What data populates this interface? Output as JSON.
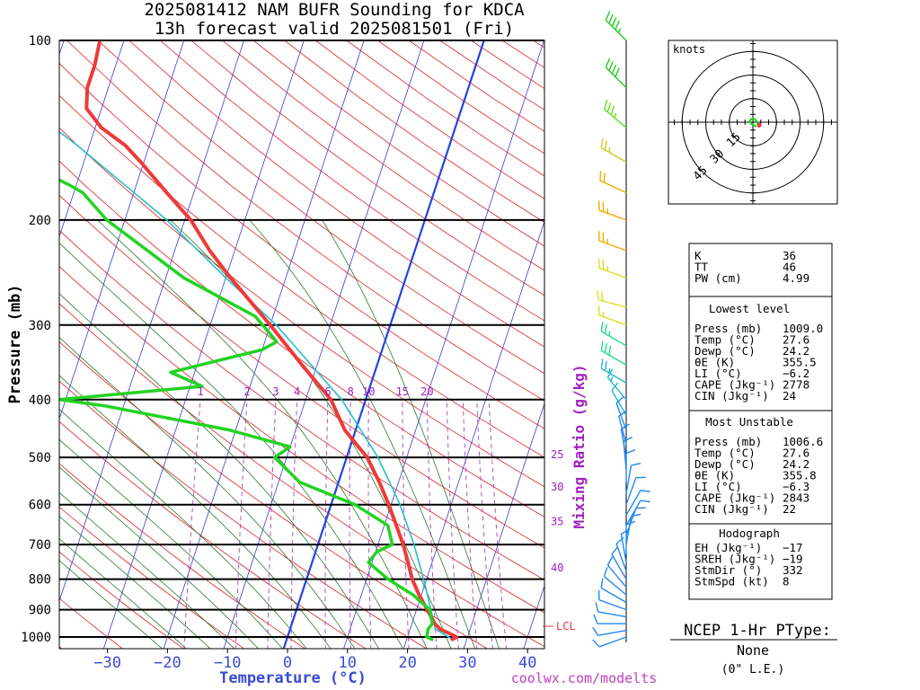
{
  "title": {
    "line1": "2025081412 NAM BUFR Sounding for KDCA",
    "line2": "13h forecast valid 2025081501 (Fri)"
  },
  "colors": {
    "temperature": "#ee3a3a",
    "dewpoint": "#22d322",
    "parcel": "#22c0d0",
    "isotherm": "#3a3ad8",
    "dry_adiabat": "#e02020",
    "moist_adiabat": "#2a7a2a",
    "mixing_ratio": "#b040c0",
    "zero_isotherm": "#2244dd",
    "mixlab": "#a020c0",
    "lcl": "#ee3a3a",
    "credit": "#c040c0",
    "temp_label": "#3a4ad8",
    "wind_profile_colors": [
      "#22cc22",
      "#66dd22",
      "#cccc22",
      "#eeaa00",
      "#dddd22",
      "#22dd88",
      "#22bbcc",
      "#2288ee"
    ]
  },
  "chart_data": {
    "type": "skew-t",
    "title": "2025081412 NAM BUFR Sounding for KDCA",
    "subtitle": "13h forecast valid 2025081501 (Fri)",
    "xlabel": "Temperature (°C)",
    "ylabel": "Pressure (mb)",
    "y2label": "Mixing Ratio (g/kg)",
    "xlim": [
      -38,
      42
    ],
    "ylim": [
      1050,
      100
    ],
    "x_ticks": [
      -30,
      -20,
      -10,
      0,
      10,
      20,
      30,
      40
    ],
    "x_tick_labels": [
      "−30",
      "−20",
      "−10",
      "0",
      "10",
      "20",
      "30",
      "40"
    ],
    "y_ticks": [
      100,
      200,
      300,
      400,
      500,
      600,
      700,
      800,
      900,
      1000
    ],
    "mixing_ratio_lines_gkg": [
      1,
      2,
      3,
      4,
      6,
      8,
      10,
      15,
      20,
      25,
      30,
      35,
      40
    ],
    "mixing_ratio_labels_top": [
      "1",
      "2",
      "3",
      "4",
      "6",
      "8",
      "10",
      "15",
      "20"
    ],
    "mixing_ratio_labels_side": [
      "25",
      "30",
      "35",
      "40"
    ],
    "lcl_label": "LCL",
    "lcl_pressure": 970,
    "series": [
      {
        "name": "Temperature",
        "points": [
          [
            1009,
            27.6
          ],
          [
            1000,
            28.2
          ],
          [
            970,
            25.0
          ],
          [
            950,
            23.8
          ],
          [
            900,
            21.8
          ],
          [
            850,
            19.6
          ],
          [
            800,
            17.6
          ],
          [
            750,
            16.0
          ],
          [
            700,
            14.2
          ],
          [
            650,
            12.0
          ],
          [
            600,
            9.6
          ],
          [
            550,
            6.8
          ],
          [
            500,
            3.4
          ],
          [
            450,
            -1.8
          ],
          [
            400,
            -5.8
          ],
          [
            350,
            -12.5
          ],
          [
            300,
            -20.0
          ],
          [
            250,
            -29.2
          ],
          [
            225,
            -34.2
          ],
          [
            200,
            -39.0
          ],
          [
            180,
            -44.5
          ],
          [
            160,
            -50.5
          ],
          [
            150,
            -54.0
          ],
          [
            140,
            -59.0
          ],
          [
            130,
            -62.5
          ],
          [
            120,
            -63.5
          ],
          [
            110,
            -63.5
          ],
          [
            100,
            -64.0
          ]
        ]
      },
      {
        "name": "Dewpoint",
        "points": [
          [
            1009,
            24.2
          ],
          [
            1000,
            23.2
          ],
          [
            970,
            23.0
          ],
          [
            950,
            23.4
          ],
          [
            900,
            22.2
          ],
          [
            850,
            18.6
          ],
          [
            800,
            13.6
          ],
          [
            750,
            9.4
          ],
          [
            720,
            10.2
          ],
          [
            700,
            12.4
          ],
          [
            650,
            10.6
          ],
          [
            600,
            4.0
          ],
          [
            550,
            -6.5
          ],
          [
            500,
            -12.0
          ],
          [
            480,
            -10.0
          ],
          [
            450,
            -21.0
          ],
          [
            410,
            -43.0
          ],
          [
            400,
            -51.0
          ],
          [
            380,
            -28.0
          ],
          [
            360,
            -34.0
          ],
          [
            330,
            -20.0
          ],
          [
            320,
            -18.0
          ],
          [
            290,
            -23.0
          ],
          [
            250,
            -37.0
          ],
          [
            200,
            -53.0
          ],
          [
            180,
            -58.5
          ],
          [
            175,
            -61.0
          ],
          [
            160,
            -70.0
          ],
          [
            150,
            -72.0
          ],
          [
            140,
            -76.0
          ],
          [
            130,
            -80.0
          ],
          [
            120,
            -81.5
          ]
        ]
      },
      {
        "name": "Parcel",
        "points": [
          [
            1009,
            27.6
          ],
          [
            970,
            24.2
          ],
          [
            900,
            22.4
          ],
          [
            800,
            19.5
          ],
          [
            700,
            16.0
          ],
          [
            600,
            11.5
          ],
          [
            500,
            5.2
          ],
          [
            400,
            -4.0
          ],
          [
            300,
            -19.0
          ],
          [
            250,
            -30.0
          ],
          [
            200,
            -43.0
          ],
          [
            150,
            -62.0
          ],
          [
            125,
            -75.0
          ],
          [
            100,
            -91.0
          ]
        ]
      }
    ],
    "wind_profile": [
      {
        "p": 100,
        "dir": 315,
        "spd": 45
      },
      {
        "p": 120,
        "dir": 315,
        "spd": 40
      },
      {
        "p": 140,
        "dir": 310,
        "spd": 35
      },
      {
        "p": 160,
        "dir": 300,
        "spd": 25
      },
      {
        "p": 180,
        "dir": 295,
        "spd": 20
      },
      {
        "p": 200,
        "dir": 290,
        "spd": 25
      },
      {
        "p": 225,
        "dir": 290,
        "spd": 25
      },
      {
        "p": 250,
        "dir": 290,
        "spd": 25
      },
      {
        "p": 280,
        "dir": 285,
        "spd": 20
      },
      {
        "p": 300,
        "dir": 290,
        "spd": 15
      },
      {
        "p": 325,
        "dir": 300,
        "spd": 25
      },
      {
        "p": 350,
        "dir": 300,
        "spd": 30
      },
      {
        "p": 375,
        "dir": 300,
        "spd": 25
      },
      {
        "p": 400,
        "dir": 320,
        "spd": 15
      },
      {
        "p": 425,
        "dir": 330,
        "spd": 10
      },
      {
        "p": 450,
        "dir": 340,
        "spd": 10
      },
      {
        "p": 475,
        "dir": 345,
        "spd": 10
      },
      {
        "p": 500,
        "dir": 350,
        "spd": 10
      },
      {
        "p": 525,
        "dir": 355,
        "spd": 10
      },
      {
        "p": 550,
        "dir": 360,
        "spd": 10
      },
      {
        "p": 575,
        "dir": 10,
        "spd": 10
      },
      {
        "p": 600,
        "dir": 20,
        "spd": 10
      },
      {
        "p": 625,
        "dir": 30,
        "spd": 10
      },
      {
        "p": 650,
        "dir": 30,
        "spd": 10
      },
      {
        "p": 675,
        "dir": 20,
        "spd": 10
      },
      {
        "p": 700,
        "dir": 10,
        "spd": 10
      },
      {
        "p": 725,
        "dir": 360,
        "spd": 10
      },
      {
        "p": 750,
        "dir": 350,
        "spd": 10
      },
      {
        "p": 775,
        "dir": 340,
        "spd": 10
      },
      {
        "p": 800,
        "dir": 330,
        "spd": 10
      },
      {
        "p": 825,
        "dir": 320,
        "spd": 10
      },
      {
        "p": 850,
        "dir": 310,
        "spd": 10
      },
      {
        "p": 875,
        "dir": 300,
        "spd": 10
      },
      {
        "p": 900,
        "dir": 290,
        "spd": 10
      },
      {
        "p": 925,
        "dir": 280,
        "spd": 10
      },
      {
        "p": 950,
        "dir": 270,
        "spd": 10
      },
      {
        "p": 975,
        "dir": 260,
        "spd": 10
      },
      {
        "p": 1000,
        "dir": 250,
        "spd": 10
      }
    ],
    "hodograph": {
      "units_label": "knots",
      "ring_labels": [
        "15",
        "30",
        "45"
      ],
      "points_uv": [
        [
          2,
          -3
        ],
        [
          1,
          -2
        ],
        [
          -1,
          -1
        ],
        [
          -2,
          0
        ],
        [
          -2,
          1
        ],
        [
          -1,
          2
        ],
        [
          1,
          2
        ],
        [
          2,
          1
        ],
        [
          3,
          -1
        ],
        [
          4,
          -2
        ],
        [
          3,
          -3
        ]
      ]
    }
  },
  "indices": [
    {
      "label": "K",
      "value": "36"
    },
    {
      "label": "TT",
      "value": "46"
    },
    {
      "label": "PW (cm)",
      "value": "4.99"
    }
  ],
  "lowest_level": {
    "heading": "Lowest level",
    "rows": [
      {
        "label": "Press (mb)",
        "value": "1009.0"
      },
      {
        "label": "Temp (°C)",
        "value": "27.6"
      },
      {
        "label": "Dewp (°C)",
        "value": "24.2"
      },
      {
        "label": "θE (K)",
        "value": "355.5"
      },
      {
        "label": "LI (°C)",
        "value": "−6.2"
      },
      {
        "label": "CAPE (Jkg⁻¹)",
        "value": "2778"
      },
      {
        "label": "CIN (Jkg⁻¹)",
        "value": "24"
      }
    ]
  },
  "most_unstable": {
    "heading": "Most Unstable",
    "rows": [
      {
        "label": "Press (mb)",
        "value": "1006.6"
      },
      {
        "label": "Temp (°C)",
        "value": "27.6"
      },
      {
        "label": "Dewp (°C)",
        "value": "24.2"
      },
      {
        "label": "θE (K)",
        "value": "355.8"
      },
      {
        "label": "LI (°C)",
        "value": "−6.3"
      },
      {
        "label": "CAPE (Jkg⁻¹)",
        "value": "2843"
      },
      {
        "label": "CIN (Jkg⁻¹)",
        "value": "22"
      }
    ]
  },
  "hodograph_table": {
    "heading": "Hodograph",
    "rows": [
      {
        "label": "EH (Jkg⁻¹)",
        "value": "−17"
      },
      {
        "label": "SREH (Jkg⁻¹)",
        "value": "−19"
      },
      {
        "label": "StmDir (°)",
        "value": "332"
      },
      {
        "label": "StmSpd (kt)",
        "value": "8"
      }
    ]
  },
  "ptype": {
    "heading": "NCEP 1-Hr PType:",
    "value": "None",
    "accum": "(0\" L.E.)"
  },
  "credit": "coolwx.com/modelts"
}
